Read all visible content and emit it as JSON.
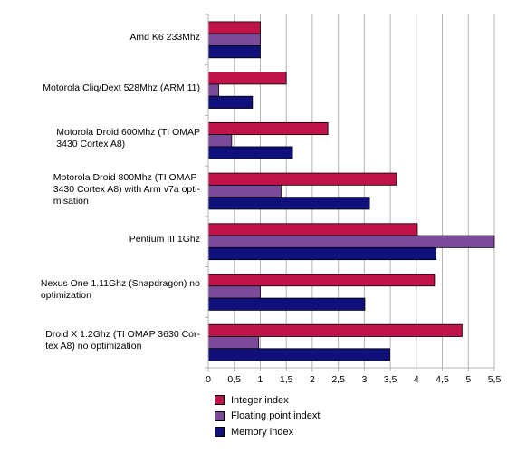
{
  "chart_data": {
    "type": "bar",
    "orientation": "horizontal",
    "title": "",
    "xlabel": "",
    "ylabel": "",
    "xlim": [
      0,
      5.5
    ],
    "x_ticks": [
      "0",
      "0,5",
      "1",
      "1,5",
      "2",
      "2,5",
      "3",
      "3,5",
      "4",
      "4,5",
      "5",
      "5,5"
    ],
    "grid": "vertical",
    "legend_position": "bottom",
    "categories": [
      "Amd K6 233Mhz",
      "Motorola Cliq/Dext 528Mhz (ARM 11)",
      "Motorola Droid 600Mhz (TI OMAP\n3430 Cortex A8)",
      "Motorola Droid 800Mhz (TI OMAP\n3430 Cortex A8)  with Arm v7a opti-\nmisation",
      "Pentium III 1Ghz",
      "Nexus One 1.11Ghz (Snapdragon) no\noptimization",
      "Droid X 1.2Ghz (TI OMAP 3630 Cor-\ntex A8)  no optimization"
    ],
    "series": [
      {
        "name": "Integer index",
        "color": "#c0134a",
        "values": [
          1.0,
          1.5,
          2.3,
          3.62,
          4.02,
          4.35,
          4.88
        ]
      },
      {
        "name": "Floating point indext",
        "color": "#7b4a9b",
        "values": [
          1.0,
          0.2,
          0.45,
          1.4,
          5.6,
          1.0,
          0.97
        ]
      },
      {
        "name": "Memory index",
        "color": "#10107a",
        "values": [
          1.0,
          0.85,
          1.62,
          3.1,
          4.38,
          3.01,
          3.49
        ]
      }
    ]
  }
}
